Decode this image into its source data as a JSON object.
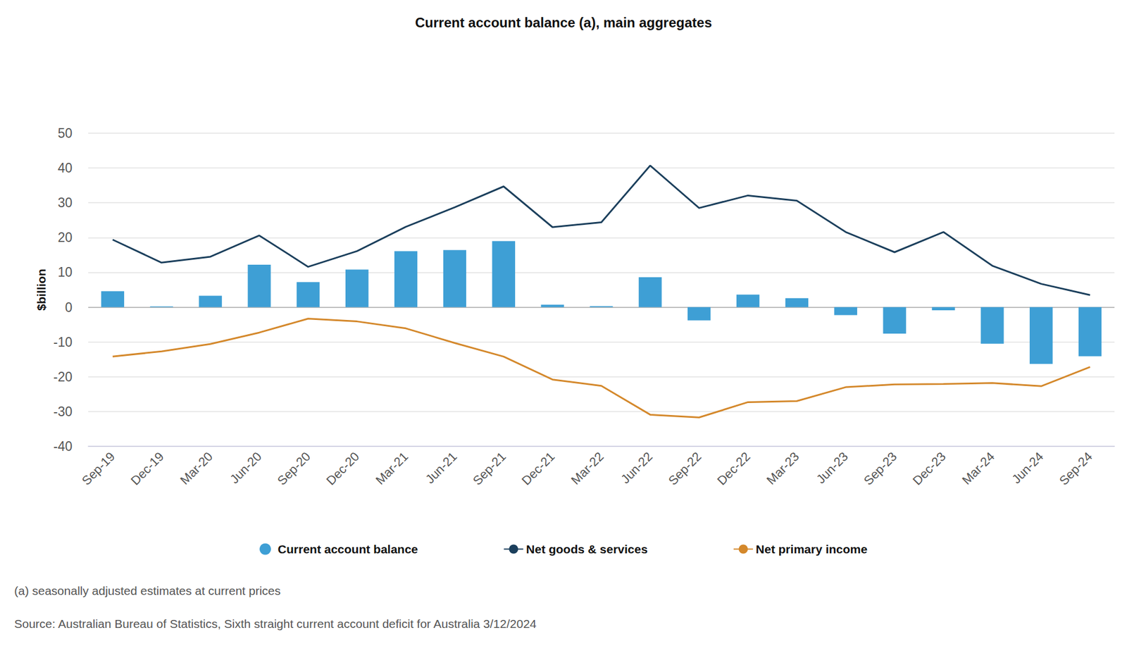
{
  "chart_data": {
    "type": "bar",
    "title": "Current account balance (a), main aggregates",
    "y_label": "$billion",
    "annotations": [
      "(a) seasonally adjusted estimates at current prices",
      "Source: Australian Bureau of Statistics, Sixth straight current account deficit for Australia 3/12/2024"
    ],
    "categories": [
      "Sep-19",
      "Dec-19",
      "Mar-20",
      "Jun-20",
      "Sep-20",
      "Dec-20",
      "Mar-21",
      "Jun-21",
      "Sep-21",
      "Dec-21",
      "Mar-22",
      "Jun-22",
      "Sep-22",
      "Dec-22",
      "Mar-23",
      "Jun-23",
      "Sep-23",
      "Dec-23",
      "Mar-24",
      "Jun-24",
      "Sep-24"
    ],
    "series": [
      {
        "name": "Current account balance",
        "type": "bar",
        "color": "#3e9fd5",
        "marker": "circle",
        "values": [
          4.6,
          0.2,
          3.3,
          12.2,
          7.2,
          10.8,
          16.1,
          16.4,
          19.0,
          0.7,
          0.3,
          8.6,
          -3.8,
          3.6,
          2.6,
          -2.3,
          -7.6,
          -0.9,
          -10.5,
          -16.3,
          -14.1
        ]
      },
      {
        "name": "Net goods & services",
        "type": "line",
        "color": "#1b3f5c",
        "line_style": "solid",
        "values": [
          19.4,
          12.8,
          14.5,
          20.6,
          11.6,
          16.1,
          23.1,
          28.7,
          34.7,
          23.0,
          24.4,
          40.7,
          28.5,
          32.1,
          30.6,
          21.6,
          15.8,
          21.6,
          11.9,
          6.7,
          3.5
        ]
      },
      {
        "name": "Net primary income",
        "type": "line",
        "color": "#d4882b",
        "line_style": "solid",
        "values": [
          -14.2,
          -12.7,
          -10.6,
          -7.3,
          -3.3,
          -4.1,
          -6.1,
          -10.3,
          -14.2,
          -20.8,
          -22.6,
          -30.9,
          -31.7,
          -27.3,
          -27.0,
          -23.0,
          -22.2,
          -22.1,
          -21.8,
          -22.7,
          -17.2
        ]
      }
    ],
    "ylim": [
      -40,
      50
    ],
    "yticks": [
      -40,
      -30,
      -20,
      -10,
      0,
      10,
      20,
      30,
      40,
      50
    ],
    "grid": true,
    "legend": "bottom"
  }
}
